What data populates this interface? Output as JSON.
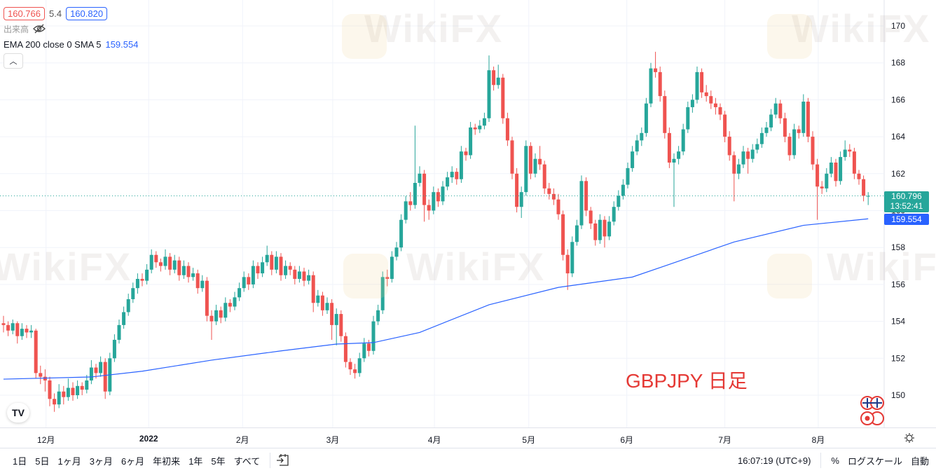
{
  "legend": {
    "bid": "160.766",
    "spread": "5.4",
    "ask": "160.820",
    "volume_label": "出来高",
    "indicator_label": "EMA 200 close 0 SMA 5",
    "indicator_value": "159.554",
    "collapse_icon": "chevron-up-icon"
  },
  "annotation": "GBPJPY 日足",
  "watermark": "WikiFX",
  "price_labels": {
    "last": "160.796",
    "countdown": "13:52:41",
    "ema": "159.554"
  },
  "toolbar": {
    "ranges": [
      "1日",
      "5日",
      "1ヶ月",
      "3ヶ月",
      "6ヶ月",
      "年初来",
      "1年",
      "5年",
      "すべて"
    ],
    "goto_icon": "calendar-goto-icon",
    "time": "16:07:19 (UTC+9)",
    "percent": "%",
    "log": "ログスケール",
    "auto": "自動"
  },
  "colors": {
    "up": "#26a69a",
    "down": "#ef5350",
    "ema": "#2962ff",
    "grid": "#f0f3fa",
    "annotation": "#e53935"
  },
  "chart_data": {
    "type": "candlestick",
    "symbol": "GBPJPY",
    "ylim": [
      148.5,
      170.5
    ],
    "yticks": [
      150,
      152,
      154,
      156,
      158,
      160,
      162,
      164,
      166,
      168,
      170
    ],
    "xticks": [
      {
        "index": 9.2,
        "label": "12月"
      },
      {
        "index": 31.4,
        "label": "2022",
        "bold": true
      },
      {
        "index": 51.7,
        "label": "2月"
      },
      {
        "index": 71.2,
        "label": "3月"
      },
      {
        "index": 93.2,
        "label": "4月"
      },
      {
        "index": 113.6,
        "label": "5月"
      },
      {
        "index": 134.8,
        "label": "6月"
      },
      {
        "index": 156,
        "label": "7月"
      },
      {
        "index": 176.2,
        "label": "8月"
      }
    ],
    "last_price": 160.796,
    "ohlc": [
      [
        153.9,
        154.3,
        153.4,
        153.8
      ],
      [
        153.8,
        154.0,
        153.2,
        153.5
      ],
      [
        153.5,
        154.1,
        153.3,
        153.9
      ],
      [
        153.9,
        154.0,
        152.8,
        153.2
      ],
      [
        153.2,
        153.9,
        153.0,
        153.6
      ],
      [
        153.6,
        153.8,
        153.1,
        153.4
      ],
      [
        153.4,
        153.8,
        153.1,
        153.5
      ],
      [
        153.5,
        153.6,
        150.9,
        151.2
      ],
      [
        151.2,
        151.6,
        150.6,
        151.0
      ],
      [
        151.0,
        151.4,
        150.2,
        150.8
      ],
      [
        150.8,
        151.0,
        149.4,
        149.8
      ],
      [
        149.8,
        150.1,
        149.1,
        149.5
      ],
      [
        149.5,
        150.6,
        149.3,
        150.2
      ],
      [
        150.2,
        150.5,
        149.5,
        149.9
      ],
      [
        149.9,
        150.9,
        149.7,
        150.4
      ],
      [
        150.4,
        150.7,
        149.7,
        150.0
      ],
      [
        150.0,
        150.8,
        149.8,
        150.5
      ],
      [
        150.5,
        150.7,
        150.0,
        150.3
      ],
      [
        150.3,
        151.1,
        150.1,
        150.8
      ],
      [
        150.8,
        151.9,
        150.6,
        151.5
      ],
      [
        151.5,
        151.7,
        150.9,
        151.2
      ],
      [
        151.2,
        152.1,
        151.0,
        151.8
      ],
      [
        151.8,
        152.0,
        149.8,
        150.2
      ],
      [
        150.2,
        152.3,
        150.0,
        152.0
      ],
      [
        152.0,
        153.3,
        151.8,
        153.0
      ],
      [
        153.0,
        154.1,
        152.8,
        153.8
      ],
      [
        153.8,
        154.8,
        153.6,
        154.5
      ],
      [
        154.5,
        155.5,
        154.3,
        155.2
      ],
      [
        155.2,
        156.1,
        155.0,
        155.8
      ],
      [
        155.8,
        156.6,
        155.5,
        156.3
      ],
      [
        156.3,
        156.6,
        155.9,
        156.2
      ],
      [
        156.2,
        157.1,
        156.0,
        156.8
      ],
      [
        156.8,
        157.9,
        156.6,
        157.6
      ],
      [
        157.6,
        157.8,
        156.9,
        157.2
      ],
      [
        157.2,
        157.4,
        156.7,
        157.0
      ],
      [
        157.0,
        157.9,
        156.8,
        157.5
      ],
      [
        157.5,
        157.7,
        156.5,
        156.8
      ],
      [
        156.8,
        157.6,
        156.6,
        157.3
      ],
      [
        157.3,
        157.5,
        156.2,
        156.5
      ],
      [
        156.5,
        157.3,
        156.3,
        157.0
      ],
      [
        157.0,
        157.2,
        156.1,
        156.4
      ],
      [
        156.4,
        156.9,
        156.2,
        156.6
      ],
      [
        156.6,
        156.8,
        155.5,
        155.8
      ],
      [
        155.8,
        156.5,
        155.6,
        156.2
      ],
      [
        156.2,
        156.4,
        154.0,
        154.3
      ],
      [
        154.3,
        154.6,
        153.0,
        154.0
      ],
      [
        154.0,
        154.9,
        153.8,
        154.6
      ],
      [
        154.6,
        154.8,
        153.9,
        154.2
      ],
      [
        154.2,
        155.3,
        154.0,
        155.0
      ],
      [
        155.0,
        155.2,
        154.5,
        154.8
      ],
      [
        154.8,
        155.6,
        154.6,
        155.3
      ],
      [
        155.3,
        156.1,
        155.1,
        155.8
      ],
      [
        155.8,
        156.7,
        155.6,
        156.4
      ],
      [
        156.4,
        156.6,
        155.7,
        156.0
      ],
      [
        156.0,
        157.3,
        155.8,
        157.0
      ],
      [
        157.0,
        157.2,
        156.3,
        156.6
      ],
      [
        156.6,
        157.5,
        156.4,
        157.2
      ],
      [
        157.2,
        158.1,
        157.0,
        157.6
      ],
      [
        157.6,
        157.8,
        156.5,
        156.8
      ],
      [
        156.8,
        157.8,
        156.6,
        157.5
      ],
      [
        157.5,
        157.7,
        156.2,
        156.5
      ],
      [
        156.5,
        157.3,
        156.3,
        157.0
      ],
      [
        157.0,
        157.2,
        156.5,
        156.8
      ],
      [
        156.8,
        157.0,
        156.0,
        156.3
      ],
      [
        156.3,
        157.0,
        156.1,
        156.7
      ],
      [
        156.7,
        156.9,
        155.9,
        156.2
      ],
      [
        156.2,
        156.8,
        156.0,
        156.5
      ],
      [
        156.5,
        156.7,
        154.5,
        155.0
      ],
      [
        155.0,
        155.7,
        154.8,
        155.4
      ],
      [
        155.4,
        155.6,
        154.3,
        154.6
      ],
      [
        154.6,
        155.3,
        154.4,
        155.0
      ],
      [
        155.0,
        155.2,
        153.0,
        153.8
      ],
      [
        153.8,
        154.7,
        152.7,
        154.4
      ],
      [
        154.4,
        154.6,
        152.9,
        153.2
      ],
      [
        153.2,
        153.4,
        151.5,
        151.8
      ],
      [
        151.8,
        152.0,
        151.1,
        151.4
      ],
      [
        151.4,
        151.7,
        150.9,
        151.2
      ],
      [
        151.2,
        152.3,
        151.0,
        152.0
      ],
      [
        152.0,
        153.1,
        151.8,
        152.8
      ],
      [
        152.8,
        153.0,
        152.1,
        152.4
      ],
      [
        152.4,
        154.3,
        152.2,
        154.0
      ],
      [
        154.0,
        154.9,
        153.8,
        154.6
      ],
      [
        154.6,
        156.7,
        154.4,
        156.4
      ],
      [
        156.4,
        156.8,
        155.9,
        156.3
      ],
      [
        156.3,
        157.8,
        156.1,
        157.5
      ],
      [
        157.5,
        158.3,
        157.3,
        158.0
      ],
      [
        158.0,
        159.8,
        157.8,
        159.5
      ],
      [
        159.5,
        160.8,
        159.3,
        160.5
      ],
      [
        160.5,
        161.0,
        160.0,
        160.3
      ],
      [
        160.3,
        164.6,
        160.1,
        161.5
      ],
      [
        161.5,
        162.4,
        161.3,
        162.0
      ],
      [
        162.0,
        162.2,
        159.4,
        160.3
      ],
      [
        160.3,
        160.6,
        159.5,
        160.0
      ],
      [
        160.0,
        161.3,
        159.8,
        161.0
      ],
      [
        161.0,
        161.2,
        160.2,
        160.5
      ],
      [
        160.5,
        161.6,
        160.3,
        161.3
      ],
      [
        161.3,
        162.1,
        161.1,
        161.8
      ],
      [
        161.8,
        162.4,
        161.5,
        162.1
      ],
      [
        162.1,
        162.3,
        161.4,
        161.7
      ],
      [
        161.7,
        163.5,
        161.5,
        163.2
      ],
      [
        163.2,
        163.4,
        162.7,
        163.0
      ],
      [
        163.0,
        164.8,
        162.8,
        164.5
      ],
      [
        164.5,
        164.7,
        164.1,
        164.4
      ],
      [
        164.4,
        164.9,
        164.2,
        164.6
      ],
      [
        164.6,
        165.3,
        164.4,
        165.0
      ],
      [
        165.0,
        168.4,
        164.8,
        167.6
      ],
      [
        167.6,
        167.8,
        166.5,
        166.8
      ],
      [
        166.8,
        167.9,
        166.6,
        167.2
      ],
      [
        167.2,
        167.4,
        164.7,
        165.0
      ],
      [
        165.0,
        165.3,
        163.5,
        163.8
      ],
      [
        163.8,
        164.0,
        161.7,
        162.0
      ],
      [
        162.0,
        162.3,
        159.9,
        160.2
      ],
      [
        160.2,
        161.3,
        159.6,
        161.0
      ],
      [
        161.0,
        163.8,
        160.8,
        163.5
      ],
      [
        163.5,
        163.7,
        161.7,
        162.0
      ],
      [
        162.0,
        163.1,
        161.8,
        162.8
      ],
      [
        162.8,
        163.5,
        162.2,
        162.5
      ],
      [
        162.5,
        162.7,
        160.9,
        161.2
      ],
      [
        161.2,
        161.5,
        160.6,
        160.9
      ],
      [
        160.9,
        161.2,
        160.3,
        160.6
      ],
      [
        160.6,
        160.9,
        159.5,
        159.8
      ],
      [
        159.8,
        160.0,
        157.3,
        157.6
      ],
      [
        157.6,
        157.9,
        155.7,
        156.6
      ],
      [
        156.6,
        158.6,
        156.4,
        158.3
      ],
      [
        158.3,
        159.5,
        158.1,
        159.2
      ],
      [
        159.2,
        161.9,
        159.0,
        161.6
      ],
      [
        161.6,
        161.8,
        159.7,
        160.0
      ],
      [
        160.0,
        160.2,
        159.0,
        159.3
      ],
      [
        159.3,
        159.5,
        158.1,
        158.4
      ],
      [
        158.4,
        159.8,
        158.2,
        159.5
      ],
      [
        159.5,
        159.7,
        158.0,
        158.6
      ],
      [
        158.6,
        159.7,
        158.4,
        159.4
      ],
      [
        159.4,
        160.5,
        159.2,
        160.2
      ],
      [
        160.2,
        161.1,
        160.0,
        160.8
      ],
      [
        160.8,
        161.7,
        160.6,
        161.4
      ],
      [
        161.4,
        162.6,
        161.2,
        162.3
      ],
      [
        162.3,
        163.5,
        162.1,
        163.2
      ],
      [
        163.2,
        164.1,
        163.0,
        163.8
      ],
      [
        163.8,
        164.5,
        163.5,
        164.2
      ],
      [
        164.2,
        166.1,
        164.0,
        165.8
      ],
      [
        165.8,
        168.0,
        165.6,
        167.7
      ],
      [
        167.7,
        168.6,
        167.2,
        167.5
      ],
      [
        167.5,
        167.8,
        165.9,
        166.2
      ],
      [
        166.2,
        166.5,
        163.9,
        164.2
      ],
      [
        164.2,
        164.5,
        162.3,
        162.6
      ],
      [
        162.6,
        163.1,
        160.2,
        162.8
      ],
      [
        162.8,
        163.5,
        162.5,
        163.2
      ],
      [
        163.2,
        164.7,
        163.0,
        164.4
      ],
      [
        164.4,
        165.9,
        164.2,
        165.6
      ],
      [
        165.6,
        166.3,
        165.3,
        166.0
      ],
      [
        166.0,
        167.8,
        165.8,
        167.5
      ],
      [
        167.5,
        167.7,
        166.1,
        166.4
      ],
      [
        166.4,
        166.8,
        165.9,
        166.2
      ],
      [
        166.2,
        166.5,
        165.5,
        165.8
      ],
      [
        165.8,
        166.1,
        165.2,
        165.6
      ],
      [
        165.6,
        165.8,
        164.9,
        165.2
      ],
      [
        165.2,
        165.4,
        163.7,
        164.0
      ],
      [
        164.0,
        164.3,
        162.7,
        163.0
      ],
      [
        163.0,
        163.2,
        160.5,
        162.0
      ],
      [
        162.0,
        162.8,
        161.7,
        162.5
      ],
      [
        162.5,
        163.5,
        162.3,
        163.2
      ],
      [
        163.2,
        163.4,
        162.0,
        162.8
      ],
      [
        162.8,
        163.6,
        162.6,
        163.3
      ],
      [
        163.3,
        163.9,
        163.1,
        163.6
      ],
      [
        163.6,
        164.5,
        163.4,
        164.2
      ],
      [
        164.2,
        164.8,
        164.0,
        164.5
      ],
      [
        164.5,
        165.5,
        164.3,
        165.2
      ],
      [
        165.2,
        166.1,
        165.0,
        165.8
      ],
      [
        165.8,
        166.0,
        164.7,
        165.0
      ],
      [
        165.0,
        165.3,
        163.7,
        164.0
      ],
      [
        164.0,
        164.2,
        162.7,
        163.0
      ],
      [
        163.0,
        164.7,
        162.8,
        164.4
      ],
      [
        164.4,
        164.6,
        163.9,
        164.2
      ],
      [
        164.2,
        166.3,
        164.0,
        165.9
      ],
      [
        165.9,
        166.1,
        163.7,
        164.0
      ],
      [
        164.0,
        164.3,
        162.2,
        162.5
      ],
      [
        162.5,
        162.8,
        159.5,
        161.3
      ],
      [
        161.3,
        161.6,
        160.9,
        161.2
      ],
      [
        161.2,
        162.3,
        161.0,
        162.0
      ],
      [
        162.0,
        162.9,
        161.8,
        162.6
      ],
      [
        162.6,
        162.8,
        161.3,
        161.6
      ],
      [
        161.6,
        163.2,
        161.4,
        162.9
      ],
      [
        162.9,
        163.8,
        162.7,
        163.3
      ],
      [
        163.3,
        163.6,
        162.9,
        163.2
      ],
      [
        163.2,
        163.4,
        161.7,
        162.0
      ],
      [
        162.0,
        162.2,
        161.4,
        161.7
      ],
      [
        161.7,
        161.9,
        160.5,
        160.8
      ],
      [
        160.77,
        161.0,
        160.3,
        160.796
      ]
    ],
    "ema200": [
      [
        0,
        150.87
      ],
      [
        19,
        150.99
      ],
      [
        30,
        151.3
      ],
      [
        45,
        151.9
      ],
      [
        60,
        152.4
      ],
      [
        72,
        152.77
      ],
      [
        80,
        152.85
      ],
      [
        90,
        153.4
      ],
      [
        105,
        154.9
      ],
      [
        120,
        155.84
      ],
      [
        136,
        156.4
      ],
      [
        143,
        157.0
      ],
      [
        158,
        158.3
      ],
      [
        173,
        159.2
      ],
      [
        187,
        159.554
      ]
    ]
  }
}
